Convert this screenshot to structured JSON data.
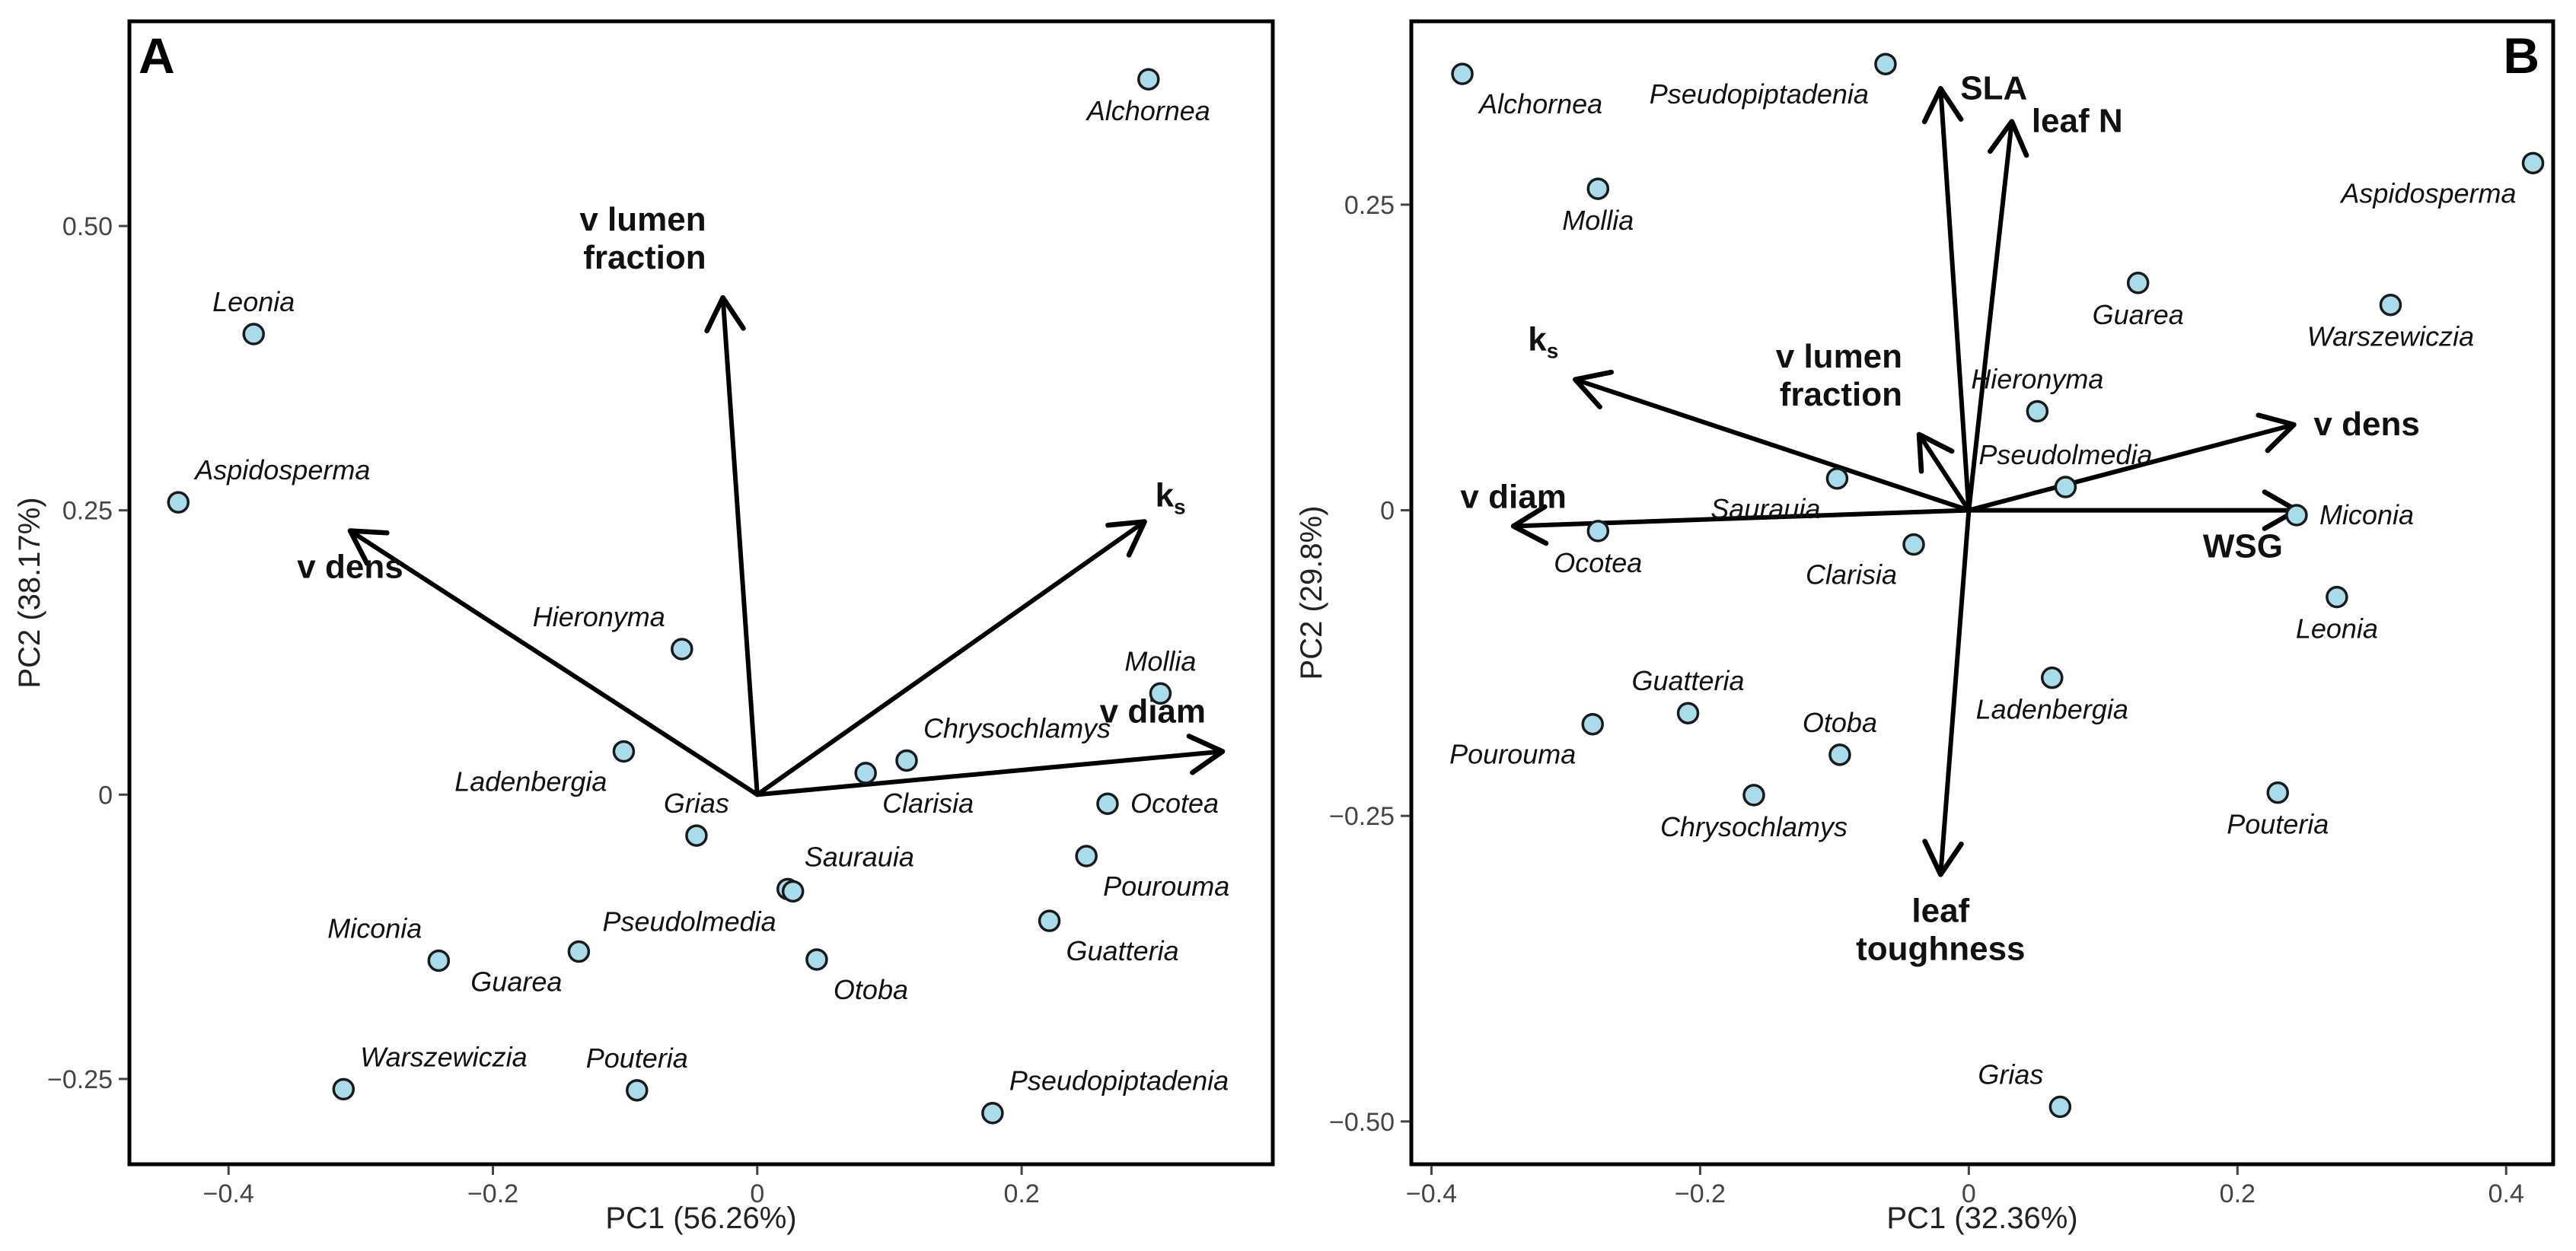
{
  "figure": {
    "point_color": "#a8dcea",
    "ink_color": "#000000"
  },
  "chart_data": [
    {
      "type": "scatter",
      "panel": "A",
      "xlabel": "PC1 (56.26%)",
      "ylabel": "PC2 (38.17%)",
      "xlim": [
        -0.475,
        0.39
      ],
      "ylim": [
        -0.325,
        0.68
      ],
      "xticks": [
        {
          "v": -0.4,
          "label": "−0.4"
        },
        {
          "v": -0.2,
          "label": "−0.2"
        },
        {
          "v": 0,
          "label": "0"
        },
        {
          "v": 0.2,
          "label": "0.2"
        }
      ],
      "yticks": [
        {
          "v": -0.25,
          "label": "−0.25"
        },
        {
          "v": 0,
          "label": "0"
        },
        {
          "v": 0.25,
          "label": "0.25"
        },
        {
          "v": 0.5,
          "label": "0.50"
        }
      ],
      "points": [
        {
          "name": "Alchornea",
          "x": 0.296,
          "y": 0.629,
          "pos": "below"
        },
        {
          "name": "Leonia",
          "x": -0.381,
          "y": 0.405,
          "pos": "above"
        },
        {
          "name": "Aspidosperma",
          "x": -0.438,
          "y": 0.257,
          "pos": "above-right"
        },
        {
          "name": "Hieronyma",
          "x": -0.057,
          "y": 0.128,
          "pos": "above-left"
        },
        {
          "name": "Mollia",
          "x": 0.305,
          "y": 0.089,
          "pos": "above"
        },
        {
          "name": "Ladenbergia",
          "x": -0.101,
          "y": 0.038,
          "pos": "below-left"
        },
        {
          "name": "Chrysochlamys",
          "x": 0.113,
          "y": 0.03,
          "pos": "above-right"
        },
        {
          "name": "Clarisia",
          "x": 0.082,
          "y": 0.019,
          "pos": "below-right"
        },
        {
          "name": "Ocotea",
          "x": 0.265,
          "y": -0.008,
          "pos": "right"
        },
        {
          "name": "Grias",
          "x": -0.046,
          "y": -0.036,
          "pos": "above"
        },
        {
          "name": "Pourouma",
          "x": 0.249,
          "y": -0.054,
          "pos": "below-right"
        },
        {
          "name": "Saurauia",
          "x": 0.023,
          "y": -0.083,
          "pos": "above-right"
        },
        {
          "name": "Pseudolmedia",
          "x": 0.027,
          "y": -0.085,
          "pos": "below-left"
        },
        {
          "name": "Guatteria",
          "x": 0.221,
          "y": -0.111,
          "pos": "below-right"
        },
        {
          "name": "Miconia",
          "x": -0.241,
          "y": -0.146,
          "pos": "above-left"
        },
        {
          "name": "Guarea",
          "x": -0.135,
          "y": -0.138,
          "pos": "below-left"
        },
        {
          "name": "Otoba",
          "x": 0.045,
          "y": -0.145,
          "pos": "below-right"
        },
        {
          "name": "Warszewiczia",
          "x": -0.313,
          "y": -0.259,
          "pos": "above-right"
        },
        {
          "name": "Pouteria",
          "x": -0.091,
          "y": -0.26,
          "pos": "above"
        },
        {
          "name": "Pseudopiptadenia",
          "x": 0.178,
          "y": -0.28,
          "pos": "above-right"
        }
      ],
      "vectors": [
        {
          "name": "v lumen fraction",
          "x": -0.026,
          "y": 0.437,
          "lines": [
            "v lumen",
            "fraction"
          ],
          "pos": "above-left"
        },
        {
          "name": "ks",
          "x": 0.293,
          "y": 0.24,
          "lines": [
            "k"
          ],
          "sub": "s",
          "pos": "above-right"
        },
        {
          "name": "v dens",
          "x": -0.308,
          "y": 0.232,
          "lines": [
            "v dens"
          ],
          "pos": "below"
        },
        {
          "name": "v diam",
          "x": 0.352,
          "y": 0.038,
          "lines": [
            "v diam"
          ],
          "pos": "above-left"
        }
      ]
    },
    {
      "type": "scatter",
      "panel": "B",
      "xlabel": "PC1 (32.36%)",
      "ylabel": "PC2 (29.8%)",
      "xlim": [
        -0.415,
        0.435
      ],
      "ylim": [
        -0.535,
        0.4
      ],
      "xticks": [
        {
          "v": -0.4,
          "label": "−0.4"
        },
        {
          "v": -0.2,
          "label": "−0.2"
        },
        {
          "v": 0,
          "label": "0"
        },
        {
          "v": 0.2,
          "label": "0.2"
        },
        {
          "v": 0.4,
          "label": "0.4"
        }
      ],
      "yticks": [
        {
          "v": -0.5,
          "label": "−0.50"
        },
        {
          "v": -0.25,
          "label": "−0.25"
        },
        {
          "v": 0,
          "label": "0"
        },
        {
          "v": 0.25,
          "label": "0.25"
        }
      ],
      "points": [
        {
          "name": "Alchornea",
          "x": -0.377,
          "y": 0.357,
          "pos": "below-right"
        },
        {
          "name": "Pseudopiptadenia",
          "x": -0.062,
          "y": 0.365,
          "pos": "below-left"
        },
        {
          "name": "Aspidosperma",
          "x": 0.42,
          "y": 0.284,
          "pos": "below-left"
        },
        {
          "name": "Mollia",
          "x": -0.276,
          "y": 0.263,
          "pos": "below"
        },
        {
          "name": "Guarea",
          "x": 0.126,
          "y": 0.186,
          "pos": "below"
        },
        {
          "name": "Warszewiczia",
          "x": 0.314,
          "y": 0.168,
          "pos": "below"
        },
        {
          "name": "Hieronyma",
          "x": 0.051,
          "y": 0.081,
          "pos": "above"
        },
        {
          "name": "Saurauia",
          "x": -0.098,
          "y": 0.026,
          "pos": "below-left"
        },
        {
          "name": "Pseudolmedia",
          "x": 0.072,
          "y": 0.019,
          "pos": "above"
        },
        {
          "name": "Miconia",
          "x": 0.244,
          "y": -0.004,
          "pos": "right"
        },
        {
          "name": "Ocotea",
          "x": -0.276,
          "y": -0.017,
          "pos": "below"
        },
        {
          "name": "Clarisia",
          "x": -0.041,
          "y": -0.028,
          "pos": "below-left"
        },
        {
          "name": "Leonia",
          "x": 0.274,
          "y": -0.071,
          "pos": "below"
        },
        {
          "name": "Ladenbergia",
          "x": 0.062,
          "y": -0.137,
          "pos": "below"
        },
        {
          "name": "Guatteria",
          "x": -0.209,
          "y": -0.166,
          "pos": "above"
        },
        {
          "name": "Pourouma",
          "x": -0.28,
          "y": -0.175,
          "pos": "below-left"
        },
        {
          "name": "Otoba",
          "x": -0.096,
          "y": -0.2,
          "pos": "above"
        },
        {
          "name": "Chrysochlamys",
          "x": -0.16,
          "y": -0.233,
          "pos": "below"
        },
        {
          "name": "Pouteria",
          "x": 0.23,
          "y": -0.231,
          "pos": "below"
        },
        {
          "name": "Grias",
          "x": 0.068,
          "y": -0.488,
          "pos": "above-left"
        }
      ],
      "vectors": [
        {
          "name": "SLA",
          "x": -0.021,
          "y": 0.345,
          "lines": [
            "SLA"
          ],
          "pos": "right"
        },
        {
          "name": "leaf N",
          "x": 0.032,
          "y": 0.318,
          "lines": [
            "leaf N"
          ],
          "pos": "right"
        },
        {
          "name": "ks",
          "x": -0.293,
          "y": 0.107,
          "lines": [
            "k"
          ],
          "sub": "s",
          "pos": "above-left"
        },
        {
          "name": "v lumen fraction",
          "x": -0.037,
          "y": 0.062,
          "lines": [
            "v lumen",
            "fraction"
          ],
          "pos": "above-left"
        },
        {
          "name": "v dens",
          "x": 0.242,
          "y": 0.07,
          "lines": [
            "v dens"
          ],
          "pos": "right"
        },
        {
          "name": "v diam",
          "x": -0.339,
          "y": -0.013,
          "lines": [
            "v diam"
          ],
          "pos": "above"
        },
        {
          "name": "WSG",
          "x": 0.244,
          "y": 0.0,
          "lines": [
            "WSG"
          ],
          "pos": "below-left"
        },
        {
          "name": "leaf toughness",
          "x": -0.021,
          "y": -0.298,
          "lines": [
            "leaf",
            "toughness"
          ],
          "pos": "below"
        }
      ]
    }
  ]
}
